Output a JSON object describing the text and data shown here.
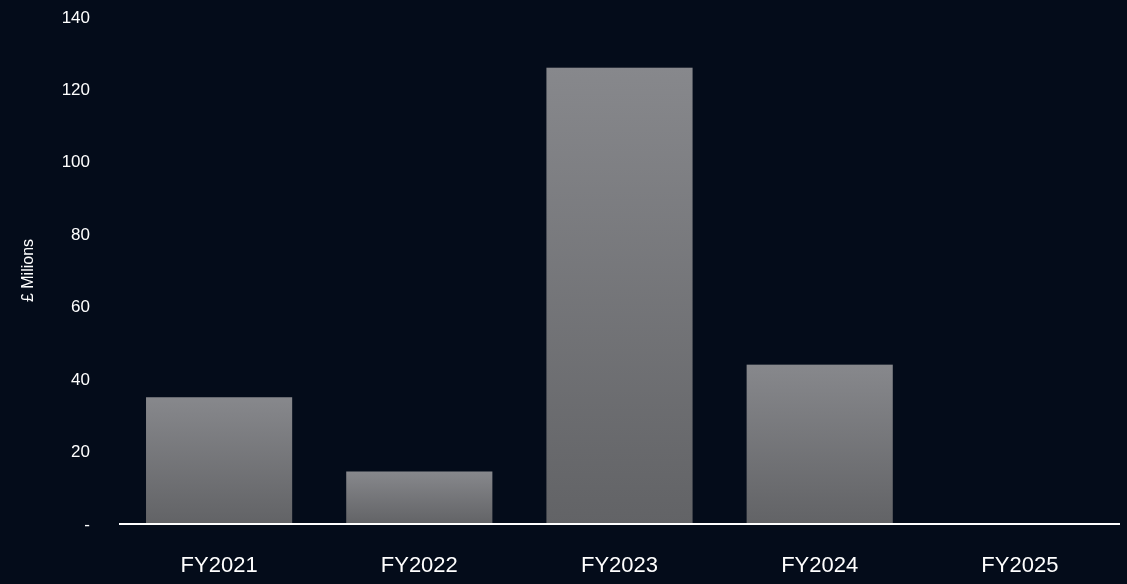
{
  "chart_data": {
    "type": "bar",
    "ylabel": "£ Milions",
    "categories": [
      "FY2021",
      "FY2022",
      "FY2023",
      "FY2024",
      "FY2025"
    ],
    "values": [
      35,
      14.5,
      126,
      44,
      null
    ],
    "color": "#87888c",
    "ylim": [
      0,
      140
    ],
    "yticks": [
      {
        "value": 0,
        "label": "-"
      },
      20,
      40,
      60,
      80,
      100,
      120,
      140
    ],
    "grid": false
  }
}
